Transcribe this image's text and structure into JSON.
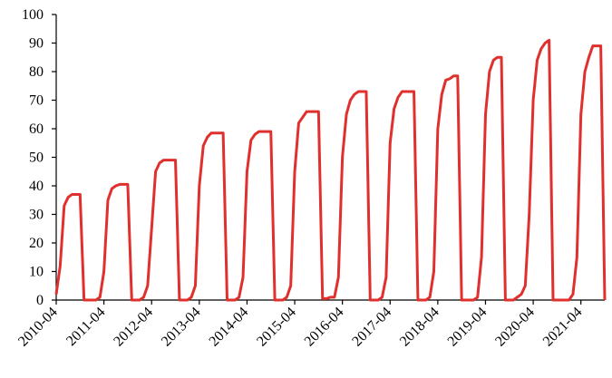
{
  "chart_data": {
    "type": "line",
    "color": "#e0302e",
    "categories": [
      "2010-04",
      null,
      null,
      null,
      null,
      null,
      null,
      null,
      null,
      null,
      null,
      null,
      "2011-04",
      null,
      null,
      null,
      null,
      null,
      null,
      null,
      null,
      null,
      null,
      null,
      "2012-04",
      null,
      null,
      null,
      null,
      null,
      null,
      null,
      null,
      null,
      null,
      null,
      "2013-04",
      null,
      null,
      null,
      null,
      null,
      null,
      null,
      null,
      null,
      null,
      null,
      "2014-04",
      null,
      null,
      null,
      null,
      null,
      null,
      null,
      null,
      null,
      null,
      null,
      "2015-04",
      null,
      null,
      null,
      null,
      null,
      null,
      null,
      null,
      null,
      null,
      null,
      "2016-04",
      null,
      null,
      null,
      null,
      null,
      null,
      null,
      null,
      null,
      null,
      null,
      "2017-04",
      null,
      null,
      null,
      null,
      null,
      null,
      null,
      null,
      null,
      null,
      null,
      "2018-04",
      null,
      null,
      null,
      null,
      null,
      null,
      null,
      null,
      null,
      null,
      null,
      "2019-04",
      null,
      null,
      null,
      null,
      null,
      null,
      null,
      null,
      null,
      null,
      null,
      "2020-04",
      null,
      null,
      null,
      null,
      null,
      null,
      null,
      null,
      null,
      null,
      null,
      "2021-04",
      null,
      null,
      null,
      null,
      null,
      null
    ],
    "values": [
      2,
      12,
      33,
      36,
      37,
      37,
      37,
      0,
      0,
      0,
      0,
      1,
      10,
      35,
      39,
      40,
      40.5,
      40.5,
      40.5,
      0,
      0,
      0,
      1,
      5,
      25,
      45,
      48,
      49,
      49,
      49,
      49,
      0,
      0,
      0,
      1,
      5,
      40,
      54,
      57,
      58.5,
      58.5,
      58.5,
      58.5,
      0,
      0,
      0,
      1,
      8,
      45,
      56,
      58,
      59,
      59,
      59,
      59,
      0,
      0,
      0,
      1,
      5,
      45,
      62,
      64,
      66,
      66,
      66,
      66,
      0.5,
      0.5,
      1,
      1,
      8,
      50,
      65,
      70,
      72,
      73,
      73,
      73,
      0,
      0,
      0,
      1,
      8,
      55,
      67,
      71,
      73,
      73,
      73,
      73,
      0,
      0,
      0,
      1,
      10,
      60,
      72,
      77,
      77.5,
      78.5,
      78.5,
      0,
      0,
      0,
      0,
      1,
      15,
      65,
      80,
      84,
      85,
      85,
      0,
      0,
      0,
      1,
      2,
      5,
      30,
      70,
      84,
      88,
      90,
      91,
      0,
      0,
      0,
      0,
      0,
      2,
      15,
      65,
      80,
      85,
      89,
      89,
      89,
      0
    ],
    "ylim": [
      0,
      100
    ],
    "yticks": [
      0,
      10,
      20,
      30,
      40,
      50,
      60,
      70,
      80,
      90,
      100
    ],
    "grid": false
  }
}
